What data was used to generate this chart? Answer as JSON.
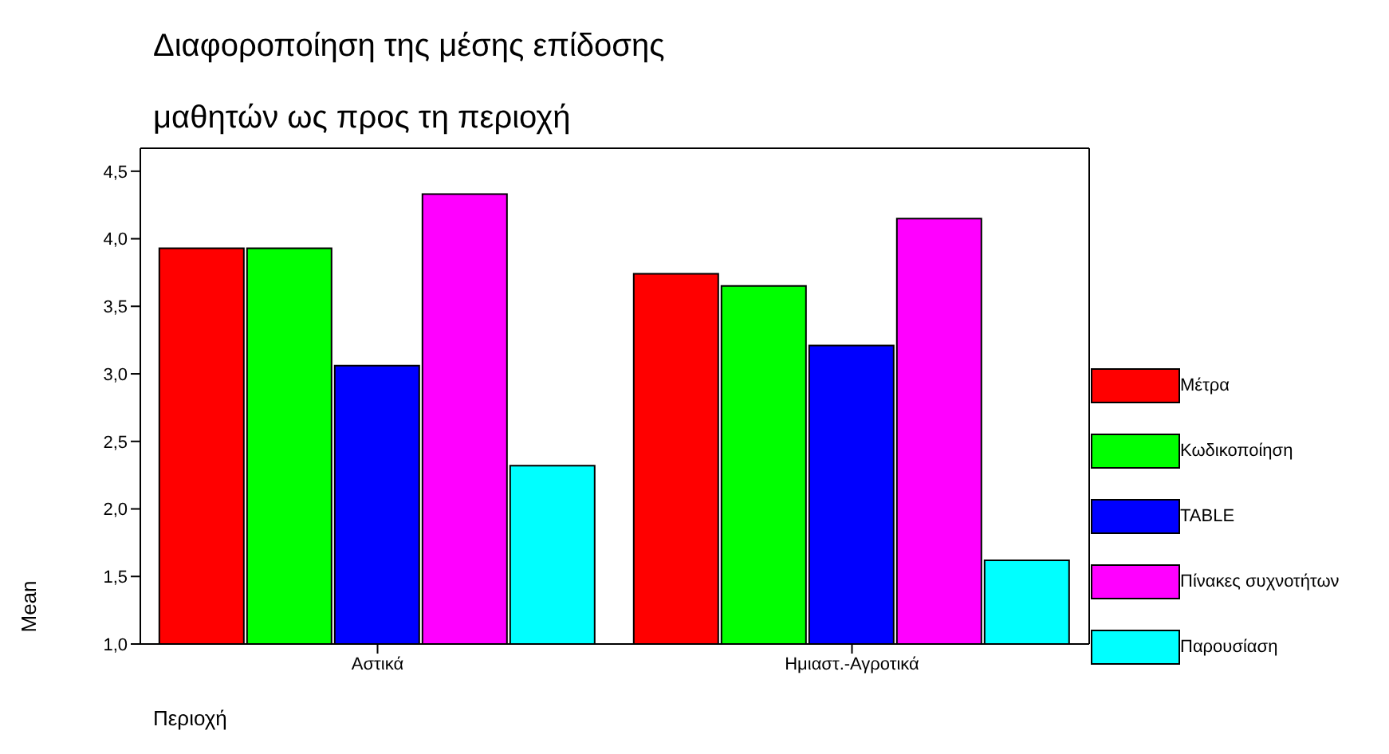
{
  "chart_data": {
    "type": "bar",
    "title": "Διαφοροποίηση της μέσης επίδοσης",
    "subtitle": "μαθητών ως προς τη περιοχή",
    "xlabel": "Περιοχή",
    "ylabel": "Mean",
    "categories": [
      "Αστικά",
      "Ημιαστ.-Αγροτικά"
    ],
    "series": [
      {
        "name": "Μέτρα",
        "color": "#ff0000",
        "values": [
          3.93,
          3.74
        ]
      },
      {
        "name": "Κωδικοποίηση",
        "color": "#00ff00",
        "values": [
          3.93,
          3.65
        ]
      },
      {
        "name": "TABLE",
        "color": "#0000ff",
        "values": [
          3.06,
          3.21
        ]
      },
      {
        "name": "Πίνακες συχνοτήτων",
        "color": "#ff00ff",
        "values": [
          4.33,
          4.15
        ]
      },
      {
        "name": "Παρουσίαση",
        "color": "#00ffff",
        "values": [
          2.32,
          1.62
        ]
      }
    ],
    "ylim": [
      1,
      4.67
    ],
    "yticks": [
      {
        "value": 1,
        "label": "1,0"
      },
      {
        "value": 1.5,
        "label": "1,5"
      },
      {
        "value": 2,
        "label": "2,0"
      },
      {
        "value": 2.5,
        "label": "2,5"
      },
      {
        "value": 3,
        "label": "3,0"
      },
      {
        "value": 3.5,
        "label": "3,5"
      },
      {
        "value": 4,
        "label": "4,0"
      },
      {
        "value": 4.5,
        "label": "4,5"
      }
    ],
    "grid": false,
    "legend": "right"
  }
}
